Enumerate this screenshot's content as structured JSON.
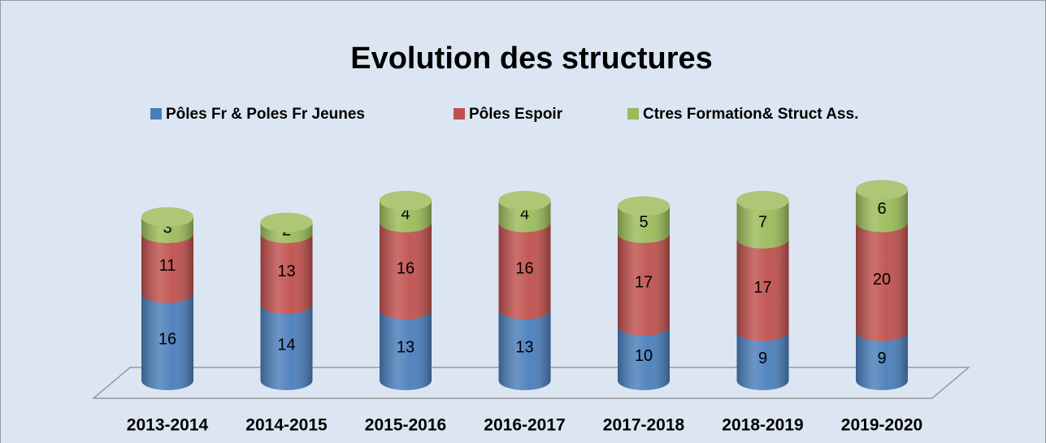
{
  "chart_data": {
    "type": "bar",
    "stacked": true,
    "title": "Evolution des structures",
    "categories": [
      "2013-2014",
      "2014-2015",
      "2015-2016",
      "2016-2017",
      "2017-2018",
      "2018-2019",
      "2019-2020"
    ],
    "series": [
      {
        "name": "Pôles Fr & Poles Fr Jeunes",
        "color": "#4a7ebb",
        "values": [
          16,
          14,
          13,
          13,
          10,
          9,
          9
        ]
      },
      {
        "name": "Pôles Espoir",
        "color": "#c0504d",
        "values": [
          11,
          13,
          16,
          16,
          17,
          17,
          20
        ]
      },
      {
        "name": "Ctres Formation& Struct Ass.",
        "color": "#9bbb59",
        "values": [
          3,
          2,
          4,
          4,
          5,
          7,
          6
        ]
      }
    ],
    "legend": "top"
  }
}
